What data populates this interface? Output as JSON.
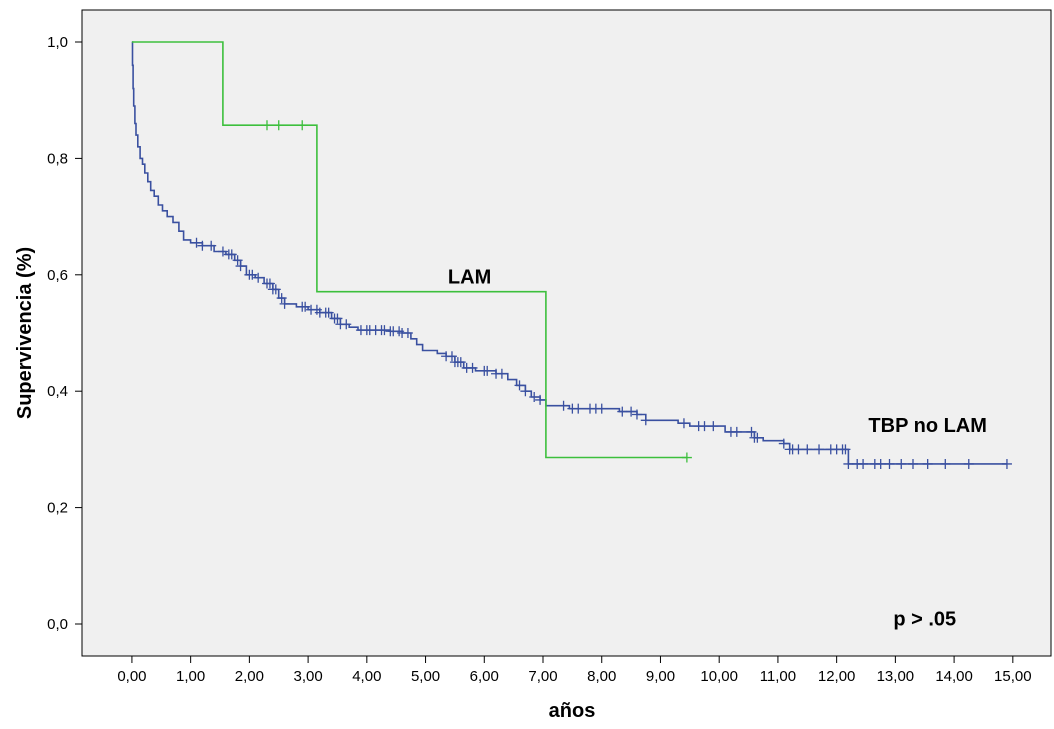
{
  "chart_data": {
    "type": "line",
    "chart_kind": "kaplan-meier survival curve",
    "xlabel": "años",
    "ylabel": "Supervivencia (%)",
    "xlim": [
      -0.85,
      15.65
    ],
    "ylim": [
      -0.055,
      1.055
    ],
    "xticks": [
      0,
      1,
      2,
      3,
      4,
      5,
      6,
      7,
      8,
      9,
      10,
      11,
      12,
      13,
      14,
      15
    ],
    "xtick_labels": [
      "0,00",
      "1,00",
      "2,00",
      "3,00",
      "4,00",
      "5,00",
      "6,00",
      "7,00",
      "8,00",
      "9,00",
      "10,00",
      "11,00",
      "12,00",
      "13,00",
      "14,00",
      "15,00"
    ],
    "yticks": [
      0,
      0.2,
      0.4,
      0.6,
      0.8,
      1.0
    ],
    "ytick_labels": [
      "0,0",
      "0,2",
      "0,4",
      "0,6",
      "0,8",
      "1,0"
    ],
    "grid": false,
    "legend": "none",
    "background_color": "#f0f0f0",
    "series": [
      {
        "color": "#3a50a0",
        "step": [
          [
            0,
            1.0
          ],
          [
            0.01,
            0.96
          ],
          [
            0.02,
            0.92
          ],
          [
            0.03,
            0.89
          ],
          [
            0.05,
            0.86
          ],
          [
            0.07,
            0.84
          ],
          [
            0.1,
            0.82
          ],
          [
            0.14,
            0.8
          ],
          [
            0.18,
            0.79
          ],
          [
            0.22,
            0.775
          ],
          [
            0.27,
            0.76
          ],
          [
            0.32,
            0.745
          ],
          [
            0.38,
            0.735
          ],
          [
            0.45,
            0.72
          ],
          [
            0.52,
            0.71
          ],
          [
            0.6,
            0.7
          ],
          [
            0.7,
            0.69
          ],
          [
            0.8,
            0.675
          ],
          [
            0.88,
            0.66
          ],
          [
            1.0,
            0.655
          ],
          [
            1.2,
            0.65
          ],
          [
            1.4,
            0.64
          ],
          [
            1.6,
            0.635
          ],
          [
            1.75,
            0.625
          ],
          [
            1.85,
            0.615
          ],
          [
            1.95,
            0.6
          ],
          [
            2.1,
            0.595
          ],
          [
            2.25,
            0.585
          ],
          [
            2.4,
            0.575
          ],
          [
            2.5,
            0.56
          ],
          [
            2.6,
            0.55
          ],
          [
            2.8,
            0.545
          ],
          [
            3.0,
            0.54
          ],
          [
            3.2,
            0.535
          ],
          [
            3.4,
            0.525
          ],
          [
            3.55,
            0.515
          ],
          [
            3.7,
            0.51
          ],
          [
            3.85,
            0.505
          ],
          [
            4.1,
            0.505
          ],
          [
            4.4,
            0.503
          ],
          [
            4.6,
            0.5
          ],
          [
            4.75,
            0.49
          ],
          [
            4.85,
            0.48
          ],
          [
            4.95,
            0.47
          ],
          [
            5.2,
            0.465
          ],
          [
            5.35,
            0.46
          ],
          [
            5.5,
            0.45
          ],
          [
            5.65,
            0.44
          ],
          [
            5.85,
            0.435
          ],
          [
            6.2,
            0.43
          ],
          [
            6.4,
            0.42
          ],
          [
            6.55,
            0.41
          ],
          [
            6.7,
            0.4
          ],
          [
            6.8,
            0.39
          ],
          [
            6.95,
            0.385
          ],
          [
            7.05,
            0.375
          ],
          [
            7.3,
            0.375
          ],
          [
            7.45,
            0.37
          ],
          [
            8.3,
            0.365
          ],
          [
            8.6,
            0.36
          ],
          [
            8.75,
            0.35
          ],
          [
            9.3,
            0.345
          ],
          [
            9.5,
            0.34
          ],
          [
            10.1,
            0.33
          ],
          [
            10.6,
            0.32
          ],
          [
            10.75,
            0.315
          ],
          [
            11.1,
            0.31
          ],
          [
            11.2,
            0.3
          ],
          [
            12.2,
            0.275
          ],
          [
            14.9,
            0.275
          ]
        ],
        "censor_x": [
          1.1,
          1.2,
          1.35,
          1.55,
          1.65,
          1.7,
          1.8,
          1.85,
          2.0,
          2.05,
          2.15,
          2.3,
          2.35,
          2.4,
          2.45,
          2.55,
          2.6,
          2.9,
          2.95,
          3.05,
          3.15,
          3.2,
          3.3,
          3.35,
          3.45,
          3.5,
          3.55,
          3.65,
          3.9,
          4.0,
          4.05,
          4.15,
          4.25,
          4.3,
          4.4,
          4.45,
          4.55,
          4.6,
          4.7,
          5.35,
          5.45,
          5.5,
          5.55,
          5.6,
          5.7,
          5.8,
          6.0,
          6.05,
          6.2,
          6.3,
          6.6,
          6.7,
          6.85,
          6.95,
          7.35,
          7.5,
          7.6,
          7.8,
          7.9,
          8.0,
          8.35,
          8.5,
          8.6,
          8.75,
          9.4,
          9.65,
          9.75,
          9.9,
          10.2,
          10.3,
          10.55,
          10.6,
          10.65,
          11.1,
          11.2,
          11.25,
          11.35,
          11.5,
          11.7,
          11.9,
          12.0,
          12.1,
          12.15,
          12.2,
          12.35,
          12.45,
          12.65,
          12.75,
          12.9,
          13.1,
          13.3,
          13.55,
          13.85,
          14.25,
          14.9
        ]
      },
      {
        "color": "#3dbf3d",
        "step": [
          [
            0,
            1.0
          ],
          [
            1.55,
            1.0
          ],
          [
            1.55,
            0.857
          ],
          [
            3.15,
            0.857
          ],
          [
            3.15,
            0.571
          ],
          [
            7.05,
            0.571
          ],
          [
            7.05,
            0.286
          ],
          [
            9.45,
            0.286
          ]
        ],
        "censor_x": [
          2.3,
          2.5,
          2.9,
          9.45
        ]
      }
    ],
    "annotations": [
      {
        "text": "LAM",
        "x": 5.75,
        "y": 0.585
      },
      {
        "text": "TBP no LAM",
        "x": 13.55,
        "y": 0.33
      },
      {
        "text": "p > .05",
        "x": 13.5,
        "y": -0.003
      }
    ]
  }
}
